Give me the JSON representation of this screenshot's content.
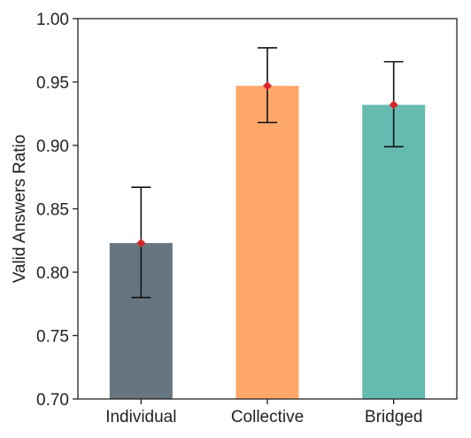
{
  "chart_data": {
    "type": "bar",
    "title": "",
    "xlabel": "",
    "ylabel": "Valid Answers Ratio",
    "ylim": [
      0.7,
      1.0
    ],
    "yticks": [
      0.7,
      0.75,
      0.8,
      0.85,
      0.9,
      0.95,
      1.0
    ],
    "ytick_labels": [
      "0.70",
      "0.75",
      "0.80",
      "0.85",
      "0.90",
      "0.95",
      "1.00"
    ],
    "categories": [
      "Individual",
      "Collective",
      "Bridged"
    ],
    "values": [
      0.823,
      0.947,
      0.932
    ],
    "error_lower": [
      0.78,
      0.918,
      0.899
    ],
    "error_upper": [
      0.867,
      0.977,
      0.966
    ],
    "mean_markers": [
      0.823,
      0.947,
      0.932
    ],
    "bar_colors": [
      "#66757f",
      "#ffa66b",
      "#66bbb0"
    ],
    "marker_color": "#d62728",
    "errorbar_color": "#111111",
    "grid": false,
    "legend": "none"
  }
}
